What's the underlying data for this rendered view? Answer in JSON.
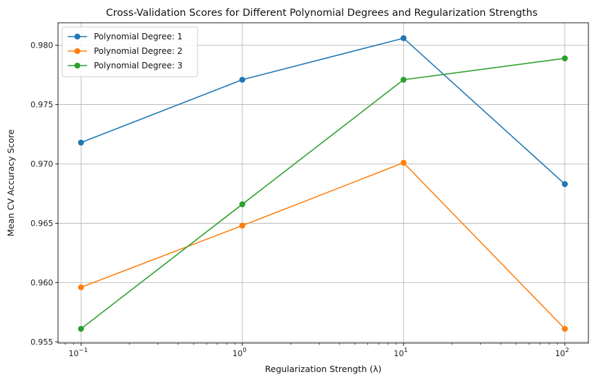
{
  "chart_data": {
    "type": "line",
    "title": "Cross-Validation Scores for Different Polynomial Degrees and Regularization Strengths",
    "xlabel": "Regularization Strength (λ)",
    "ylabel": "Mean CV Accuracy Score",
    "xscale": "log",
    "x": [
      0.1,
      1,
      10,
      100
    ],
    "x_tick_values": [
      0.1,
      1,
      10,
      100
    ],
    "x_tick_labels": [
      {
        "base": "10",
        "exp": "−1"
      },
      {
        "base": "10",
        "exp": "0"
      },
      {
        "base": "10",
        "exp": "1"
      },
      {
        "base": "10",
        "exp": "2"
      }
    ],
    "y_ticks": [
      0.955,
      0.96,
      0.965,
      0.97,
      0.975,
      0.98
    ],
    "y_tick_labels": [
      "0.955",
      "0.960",
      "0.965",
      "0.970",
      "0.975",
      "0.980"
    ],
    "xlim": [
      0.072,
      140
    ],
    "ylim": [
      0.9549,
      0.9819
    ],
    "grid": true,
    "legend_position": "top-left",
    "series": [
      {
        "name": "Polynomial Degree: 1",
        "color": "#1f77b4",
        "values": [
          0.9718,
          0.9771,
          0.9806,
          0.9683
        ]
      },
      {
        "name": "Polynomial Degree: 2",
        "color": "#ff7f0e",
        "values": [
          0.9596,
          0.9648,
          0.9701,
          0.9561
        ]
      },
      {
        "name": "Polynomial Degree: 3",
        "color": "#2ca02c",
        "values": [
          0.9561,
          0.9666,
          0.9771,
          0.9789
        ]
      }
    ]
  }
}
